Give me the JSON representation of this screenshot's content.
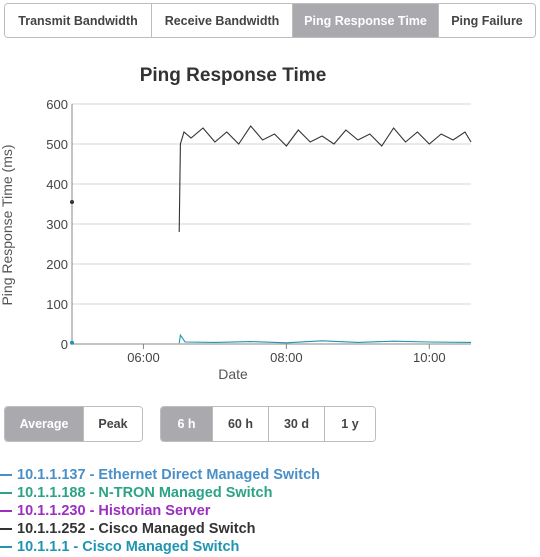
{
  "tabs": [
    {
      "label": "Transmit Bandwidth",
      "active": false
    },
    {
      "label": "Receive Bandwidth",
      "active": false
    },
    {
      "label": "Ping Response Time",
      "active": true
    },
    {
      "label": "Ping Failure",
      "active": false
    }
  ],
  "aggregation": [
    {
      "label": "Average",
      "active": true
    },
    {
      "label": "Peak",
      "active": false
    }
  ],
  "ranges": [
    {
      "label": "6 h",
      "active": true
    },
    {
      "label": "60 h",
      "active": false
    },
    {
      "label": "30 d",
      "active": false
    },
    {
      "label": "1 y",
      "active": false
    }
  ],
  "legend": [
    {
      "label": "10.1.1.137 - Ethernet Direct Managed Switch",
      "color": "#4a90c8"
    },
    {
      "label": "10.1.1.188 - N-TRON Managed Switch",
      "color": "#2aa386"
    },
    {
      "label": "10.1.1.230 - Historian Server",
      "color": "#9b2fc2"
    },
    {
      "label": "10.1.1.252 - Cisco Managed Switch",
      "color": "#333333"
    },
    {
      "label": "10.1.1.1 - Cisco Managed Switch",
      "color": "#1f95b0"
    }
  ],
  "chart_data": {
    "type": "line",
    "title": "Ping Response Time",
    "xlabel": "Date",
    "ylabel": "Ping Response Time (ms)",
    "ylim": [
      0,
      600
    ],
    "yticks": [
      0,
      100,
      200,
      300,
      400,
      500,
      600
    ],
    "xlim": [
      "05:00",
      "10:35"
    ],
    "xticks": [
      "06:00",
      "08:00",
      "10:00"
    ],
    "grid": true,
    "series": [
      {
        "name": "10.1.1.252 - Cisco Managed Switch",
        "color": "#333333",
        "points": [
          [
            "05:00",
            355
          ],
          [
            "06:30",
            280
          ],
          [
            "06:31",
            500
          ],
          [
            "06:34",
            530
          ],
          [
            "06:40",
            515
          ],
          [
            "06:50",
            540
          ],
          [
            "07:00",
            505
          ],
          [
            "07:10",
            530
          ],
          [
            "07:20",
            500
          ],
          [
            "07:30",
            545
          ],
          [
            "07:40",
            510
          ],
          [
            "07:50",
            525
          ],
          [
            "08:00",
            495
          ],
          [
            "08:10",
            535
          ],
          [
            "08:20",
            505
          ],
          [
            "08:30",
            520
          ],
          [
            "08:40",
            500
          ],
          [
            "08:50",
            535
          ],
          [
            "09:00",
            510
          ],
          [
            "09:10",
            525
          ],
          [
            "09:20",
            495
          ],
          [
            "09:30",
            540
          ],
          [
            "09:40",
            505
          ],
          [
            "09:50",
            530
          ],
          [
            "10:00",
            500
          ],
          [
            "10:10",
            525
          ],
          [
            "10:20",
            510
          ],
          [
            "10:30",
            530
          ],
          [
            "10:35",
            505
          ]
        ]
      },
      {
        "name": "10.1.1.1 - Cisco Managed Switch",
        "color": "#1f95b0",
        "points": [
          [
            "05:00",
            3
          ],
          [
            "06:30",
            2
          ],
          [
            "06:31",
            22
          ],
          [
            "06:35",
            5
          ],
          [
            "07:00",
            4
          ],
          [
            "07:30",
            6
          ],
          [
            "08:00",
            3
          ],
          [
            "08:30",
            8
          ],
          [
            "09:00",
            4
          ],
          [
            "09:30",
            7
          ],
          [
            "10:00",
            5
          ],
          [
            "10:35",
            4
          ]
        ]
      }
    ]
  }
}
